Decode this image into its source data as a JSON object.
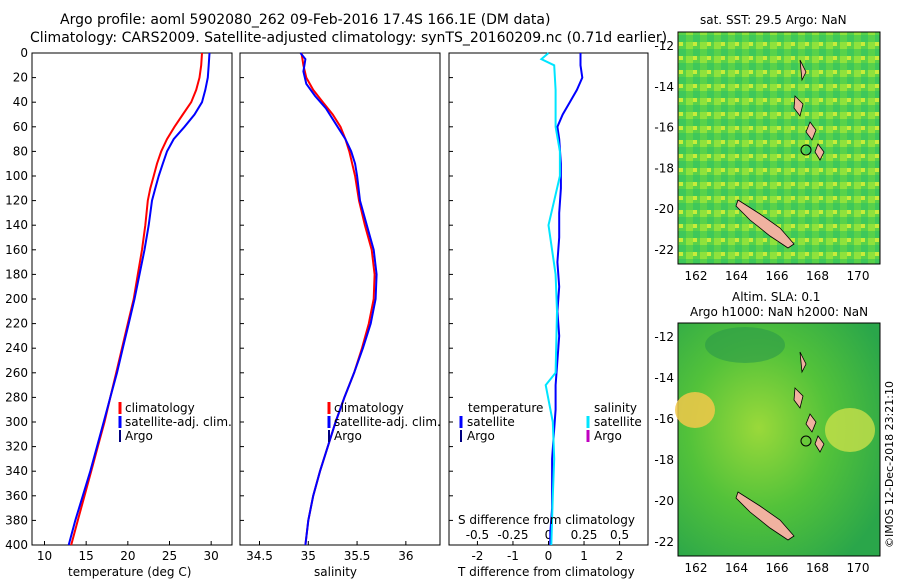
{
  "header": {
    "line1": "Argo profile: aoml 5902080_262 09-Feb-2016 17.4S 166.1E (DM data)",
    "line2": "Climatology: CARS2009. Satellite-adjusted climatology: synTS_20160209.nc (0.71d earlier)"
  },
  "colors": {
    "climatology": "#ff0000",
    "satellite": "#0000ff",
    "argo": "#000080",
    "s_satellite": "#00e5ff",
    "s_argo": "#c000c0"
  },
  "chart_data": [
    {
      "type": "line",
      "name": "temperature",
      "xlabel": "temperature (deg C)",
      "ylabel": "",
      "xlim": [
        8.5,
        32.5
      ],
      "ylim": [
        400,
        0
      ],
      "xticks": [
        "10",
        "15",
        "20",
        "25",
        "30"
      ],
      "yticks": [
        "0",
        "20",
        "40",
        "60",
        "80",
        "100",
        "120",
        "140",
        "160",
        "180",
        "200",
        "220",
        "240",
        "260",
        "280",
        "300",
        "320",
        "340",
        "360",
        "380",
        "400"
      ],
      "legend": [
        "climatology",
        "satellite-adj. clim.",
        "Argo"
      ],
      "series": [
        {
          "name": "climatology",
          "color": "#ff0000",
          "points": [
            [
              28.9,
              0
            ],
            [
              28.8,
              10
            ],
            [
              28.6,
              20
            ],
            [
              28.2,
              30
            ],
            [
              27.6,
              40
            ],
            [
              26.6,
              50
            ],
            [
              25.6,
              60
            ],
            [
              24.7,
              70
            ],
            [
              24.0,
              80
            ],
            [
              23.5,
              90
            ],
            [
              23.1,
              100
            ],
            [
              22.7,
              110
            ],
            [
              22.4,
              120
            ],
            [
              22.1,
              140
            ],
            [
              21.7,
              160
            ],
            [
              21.2,
              180
            ],
            [
              20.7,
              200
            ],
            [
              20.0,
              220
            ],
            [
              19.3,
              240
            ],
            [
              18.6,
              260
            ],
            [
              17.9,
              280
            ],
            [
              17.2,
              300
            ],
            [
              16.4,
              320
            ],
            [
              15.6,
              340
            ],
            [
              14.8,
              360
            ],
            [
              14.0,
              380
            ],
            [
              13.2,
              400
            ]
          ]
        },
        {
          "name": "satellite-adj. clim.",
          "color": "#0000ff",
          "points": [
            [
              29.8,
              0
            ],
            [
              29.7,
              10
            ],
            [
              29.6,
              20
            ],
            [
              29.3,
              30
            ],
            [
              28.9,
              40
            ],
            [
              28.0,
              50
            ],
            [
              26.8,
              60
            ],
            [
              25.5,
              70
            ],
            [
              24.7,
              80
            ],
            [
              24.2,
              90
            ],
            [
              23.7,
              100
            ],
            [
              23.3,
              110
            ],
            [
              22.9,
              120
            ],
            [
              22.5,
              140
            ],
            [
              22.0,
              160
            ],
            [
              21.4,
              180
            ],
            [
              20.8,
              200
            ],
            [
              20.1,
              220
            ],
            [
              19.4,
              240
            ],
            [
              18.7,
              260
            ],
            [
              17.9,
              280
            ],
            [
              17.1,
              300
            ],
            [
              16.3,
              320
            ],
            [
              15.5,
              340
            ],
            [
              14.6,
              360
            ],
            [
              13.7,
              380
            ],
            [
              12.9,
              400
            ]
          ]
        }
      ]
    },
    {
      "type": "line",
      "name": "salinity",
      "xlabel": "salinity",
      "ylabel": "",
      "xlim": [
        34.3,
        36.35
      ],
      "ylim": [
        400,
        0
      ],
      "xticks": [
        "34.5",
        "35",
        "35.5",
        "36"
      ],
      "legend": [
        "climatology",
        "satellite-adj. clim.",
        "Argo"
      ],
      "series": [
        {
          "name": "climatology",
          "color": "#ff0000",
          "points": [
            [
              34.93,
              0
            ],
            [
              34.95,
              10
            ],
            [
              34.98,
              20
            ],
            [
              35.05,
              30
            ],
            [
              35.15,
              40
            ],
            [
              35.25,
              50
            ],
            [
              35.33,
              60
            ],
            [
              35.38,
              70
            ],
            [
              35.42,
              80
            ],
            [
              35.45,
              90
            ],
            [
              35.48,
              100
            ],
            [
              35.52,
              120
            ],
            [
              35.58,
              140
            ],
            [
              35.65,
              160
            ],
            [
              35.68,
              180
            ],
            [
              35.67,
              200
            ],
            [
              35.62,
              220
            ],
            [
              35.55,
              240
            ],
            [
              35.47,
              260
            ],
            [
              35.37,
              280
            ],
            [
              35.28,
              300
            ],
            [
              35.2,
              320
            ],
            [
              35.12,
              340
            ],
            [
              35.05,
              360
            ],
            [
              35.0,
              380
            ],
            [
              34.97,
              400
            ]
          ]
        },
        {
          "name": "satellite-adj. clim.",
          "color": "#0000ff",
          "points": [
            [
              34.92,
              0
            ],
            [
              34.97,
              5
            ],
            [
              34.95,
              15
            ],
            [
              34.98,
              25
            ],
            [
              35.07,
              35
            ],
            [
              35.18,
              45
            ],
            [
              35.3,
              60
            ],
            [
              35.38,
              70
            ],
            [
              35.44,
              80
            ],
            [
              35.48,
              90
            ],
            [
              35.5,
              100
            ],
            [
              35.53,
              120
            ],
            [
              35.6,
              140
            ],
            [
              35.67,
              160
            ],
            [
              35.7,
              180
            ],
            [
              35.69,
              200
            ],
            [
              35.64,
              220
            ],
            [
              35.56,
              240
            ],
            [
              35.47,
              260
            ],
            [
              35.37,
              280
            ],
            [
              35.28,
              300
            ],
            [
              35.2,
              320
            ],
            [
              35.12,
              340
            ],
            [
              35.05,
              360
            ],
            [
              35.0,
              380
            ],
            [
              34.97,
              400
            ]
          ]
        }
      ]
    },
    {
      "type": "line",
      "name": "difference",
      "xlabel": "T difference from climatology",
      "xlabel_top": "S difference from climatology",
      "xlim": [
        -2.8,
        2.8
      ],
      "ylim": [
        400,
        0
      ],
      "xticks": [
        "-2",
        "-1",
        "0",
        "1",
        "2"
      ],
      "xticks_s": [
        "-0.5",
        "-0.25",
        "0",
        "0.25",
        "0.5"
      ],
      "legend_groups": {
        "temperature": {
          "heading": "temperature",
          "items": [
            "satellite",
            "Argo"
          ]
        },
        "salinity": {
          "heading": "salinity",
          "items": [
            "satellite",
            "Argo"
          ]
        }
      },
      "series": [
        {
          "name": "T satellite",
          "color": "#0000ff",
          "points": [
            [
              0.9,
              0
            ],
            [
              0.9,
              10
            ],
            [
              0.95,
              20
            ],
            [
              0.8,
              30
            ],
            [
              0.6,
              40
            ],
            [
              0.4,
              50
            ],
            [
              0.25,
              60
            ],
            [
              0.3,
              70
            ],
            [
              0.35,
              90
            ],
            [
              0.35,
              110
            ],
            [
              0.3,
              130
            ],
            [
              0.3,
              150
            ],
            [
              0.25,
              170
            ],
            [
              0.3,
              190
            ],
            [
              0.25,
              210
            ],
            [
              0.3,
              230
            ],
            [
              0.25,
              250
            ],
            [
              0.2,
              270
            ],
            [
              0.2,
              290
            ],
            [
              0.15,
              310
            ],
            [
              0.1,
              330
            ],
            [
              0.1,
              350
            ],
            [
              0.1,
              370
            ],
            [
              0.05,
              390
            ],
            [
              0.05,
              400
            ]
          ]
        },
        {
          "name": "S satellite",
          "color": "#00e5ff",
          "points": [
            [
              0.0,
              0
            ],
            [
              -0.05,
              5
            ],
            [
              0.04,
              10
            ],
            [
              0.05,
              30
            ],
            [
              0.05,
              60
            ],
            [
              0.08,
              80
            ],
            [
              0.08,
              100
            ],
            [
              0.0,
              140
            ],
            [
              0.05,
              180
            ],
            [
              0.06,
              210
            ],
            [
              0.05,
              260
            ],
            [
              -0.02,
              270
            ],
            [
              0.03,
              300
            ],
            [
              0.04,
              330
            ],
            [
              0.03,
              360
            ],
            [
              0.02,
              400
            ]
          ]
        }
      ]
    }
  ],
  "maps": {
    "sst": {
      "title": "sat. SST: 29.5 Argo: NaN",
      "yticks": [
        "-12",
        "-14",
        "-16",
        "-18",
        "-20",
        "-22"
      ],
      "xticks": [
        "162",
        "164",
        "166",
        "168",
        "170"
      ]
    },
    "sla": {
      "title_line1": "Altim. SLA: 0.1",
      "title_line2": "Argo h1000: NaN h2000: NaN",
      "yticks": [
        "-12",
        "-14",
        "-16",
        "-18",
        "-20",
        "-22"
      ],
      "xticks": [
        "162",
        "164",
        "166",
        "168",
        "170"
      ]
    }
  },
  "credit": "©IMOS 12-Dec-2018 23:21:10"
}
